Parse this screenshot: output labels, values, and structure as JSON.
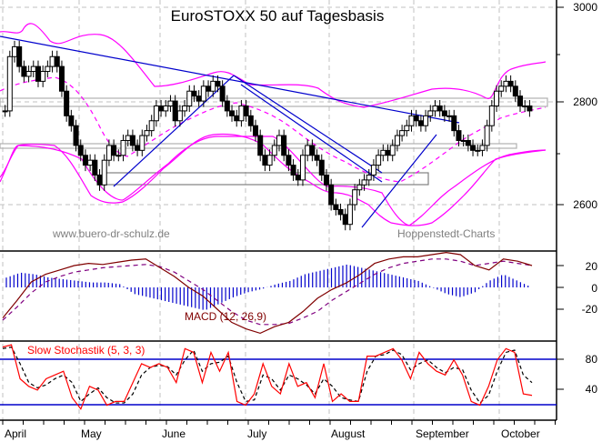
{
  "chart_data": [
    {
      "type": "candlestick",
      "title": "EuroSTOXX 50 auf Tagesbasis",
      "xlabel": "",
      "ylabel": "",
      "ylim": [
        2530,
        3010
      ],
      "yticks": [
        2600,
        2800,
        3000
      ],
      "x_months": [
        "April",
        "May",
        "June",
        "July",
        "August",
        "September",
        "October"
      ],
      "overlays": [
        "Bollinger Bands (upper/lower, magenta)",
        "Moving average (magenta dashed)",
        "Trend lines (blue)",
        "Support/resistance boxes (gray)"
      ],
      "approx_close": [
        {
          "month": "April",
          "values": [
            2790,
            2900,
            2920,
            2880,
            2860,
            2870,
            2880,
            2850,
            2870,
            2880,
            2900,
            2880,
            2830,
            2780
          ]
        },
        {
          "month": "May",
          "values": [
            2760,
            2720,
            2700,
            2680,
            2690,
            2660,
            2640,
            2690,
            2720,
            2700,
            2700,
            2730,
            2740,
            2720,
            2710,
            2740,
            2750
          ]
        },
        {
          "month": "June",
          "values": [
            2770,
            2800,
            2790,
            2800,
            2810,
            2770,
            2790,
            2800,
            2830,
            2820,
            2810,
            2840,
            2830,
            2850,
            2840
          ]
        },
        {
          "month": "July",
          "values": [
            2810,
            2790,
            2780,
            2770,
            2800,
            2780,
            2760,
            2740,
            2700,
            2680,
            2700,
            2720,
            2740,
            2700,
            2680,
            2660,
            2650,
            2700,
            2720,
            2700,
            2690
          ]
        },
        {
          "month": "August",
          "values": [
            2660,
            2640,
            2600,
            2590,
            2580,
            2560,
            2600,
            2630,
            2640,
            2650,
            2660,
            2680,
            2700,
            2710,
            2700,
            2720,
            2740,
            2750,
            2760,
            2780,
            2770
          ]
        },
        {
          "month": "September",
          "values": [
            2760,
            2780,
            2790,
            2800,
            2790,
            2780,
            2780,
            2750,
            2730,
            2730,
            2720,
            2710,
            2710,
            2720,
            2760,
            2800
          ]
        },
        {
          "month": "October",
          "values": [
            2830,
            2840,
            2850,
            2840,
            2820,
            2800,
            2800,
            2790
          ]
        }
      ]
    },
    {
      "type": "line",
      "title": "MACD (12, 26,9)",
      "ylim": [
        -45,
        35
      ],
      "yticks": [
        20,
        0,
        -20
      ],
      "series": [
        {
          "name": "MACD",
          "color": "#800000",
          "values": [
            -28,
            -12,
            5,
            12,
            16,
            20,
            22,
            21,
            23,
            25,
            26,
            18,
            10,
            0,
            -8,
            -20,
            -32,
            -38,
            -42,
            -36,
            -32,
            -22,
            -10,
            -2,
            4,
            12,
            22,
            26,
            28,
            28,
            30,
            32,
            30,
            20,
            16,
            26,
            24,
            20
          ]
        },
        {
          "name": "Signal",
          "color": "#800080",
          "values": [
            -30,
            -18,
            -5,
            5,
            10,
            14,
            16,
            18,
            19,
            20,
            21,
            19,
            14,
            6,
            -2,
            -12,
            -22,
            -30,
            -34,
            -34,
            -33,
            -28,
            -22,
            -12,
            -4,
            4,
            12,
            18,
            22,
            24,
            26,
            26,
            24,
            20,
            22,
            24,
            22,
            20
          ]
        },
        {
          "name": "Histogram",
          "color": "#0000cc",
          "values": [
            6,
            9,
            8,
            6,
            5,
            4,
            3,
            3,
            2,
            -4,
            -6,
            -8,
            -10,
            -12,
            -14,
            -10,
            -6,
            -3,
            -1,
            2,
            4,
            8,
            10,
            12,
            14,
            12,
            10,
            8,
            6,
            4,
            0,
            -4,
            -6,
            -3,
            4,
            8,
            4,
            0
          ]
        }
      ]
    },
    {
      "type": "line",
      "title": "Slow Stochastik (5, 3, 3)",
      "ylim": [
        0,
        100
      ],
      "yticks": [
        80,
        40
      ],
      "hlines": [
        80,
        20
      ],
      "series": [
        {
          "name": "%K",
          "color": "#ff0000",
          "values": [
            92,
            95,
            50,
            40,
            35,
            50,
            55,
            60,
            25,
            10,
            40,
            35,
            15,
            20,
            20,
            45,
            70,
            65,
            70,
            65,
            45,
            90,
            85,
            45,
            85,
            60,
            85,
            20,
            15,
            30,
            70,
            40,
            30,
            70,
            40,
            45,
            25,
            70,
            20,
            30,
            20,
            20,
            80,
            80,
            85,
            90,
            75,
            50,
            85,
            70,
            60,
            55,
            75,
            55,
            20,
            15,
            40,
            75,
            90,
            85,
            30,
            28
          ]
        },
        {
          "name": "%D",
          "color": "#000000",
          "values": [
            90,
            92,
            70,
            45,
            38,
            42,
            50,
            55,
            45,
            20,
            30,
            38,
            25,
            18,
            18,
            30,
            55,
            65,
            68,
            66,
            55,
            75,
            88,
            60,
            70,
            72,
            80,
            45,
            20,
            22,
            55,
            50,
            35,
            55,
            50,
            42,
            30,
            50,
            40,
            25,
            22,
            20,
            60,
            80,
            82,
            88,
            82,
            62,
            70,
            75,
            65,
            58,
            65,
            62,
            35,
            18,
            28,
            60,
            85,
            88,
            55,
            45
          ]
        }
      ]
    }
  ],
  "header": {
    "title": "EuroSTOXX 50 auf Tagesbasis"
  },
  "watermarks": {
    "left": "www.buero-dr-schulz.de",
    "right": "Hoppenstedt-Charts"
  },
  "price_axis": {
    "t3000": "3000",
    "t2800": "2800",
    "t2600": "2600"
  },
  "macd_axis": {
    "t20": "20",
    "t0": "0",
    "tm20": "-20"
  },
  "stoch_axis": {
    "t80": "80",
    "t40": "40"
  },
  "macd_label": "MACD (12, 26,9)",
  "stoch_label": "Slow Stochastik (5, 3, 3)",
  "months": {
    "m0": "April",
    "m1": "May",
    "m2": "June",
    "m3": "July",
    "m4": "August",
    "m5": "September",
    "m6": "October"
  },
  "colors": {
    "band": "#ff00ff",
    "trend": "#0000cc",
    "macd": "#800000",
    "signal": "#800080",
    "hist": "#0000cc",
    "k": "#ff0000",
    "d": "#000000",
    "grid": "#c0c0c0"
  }
}
